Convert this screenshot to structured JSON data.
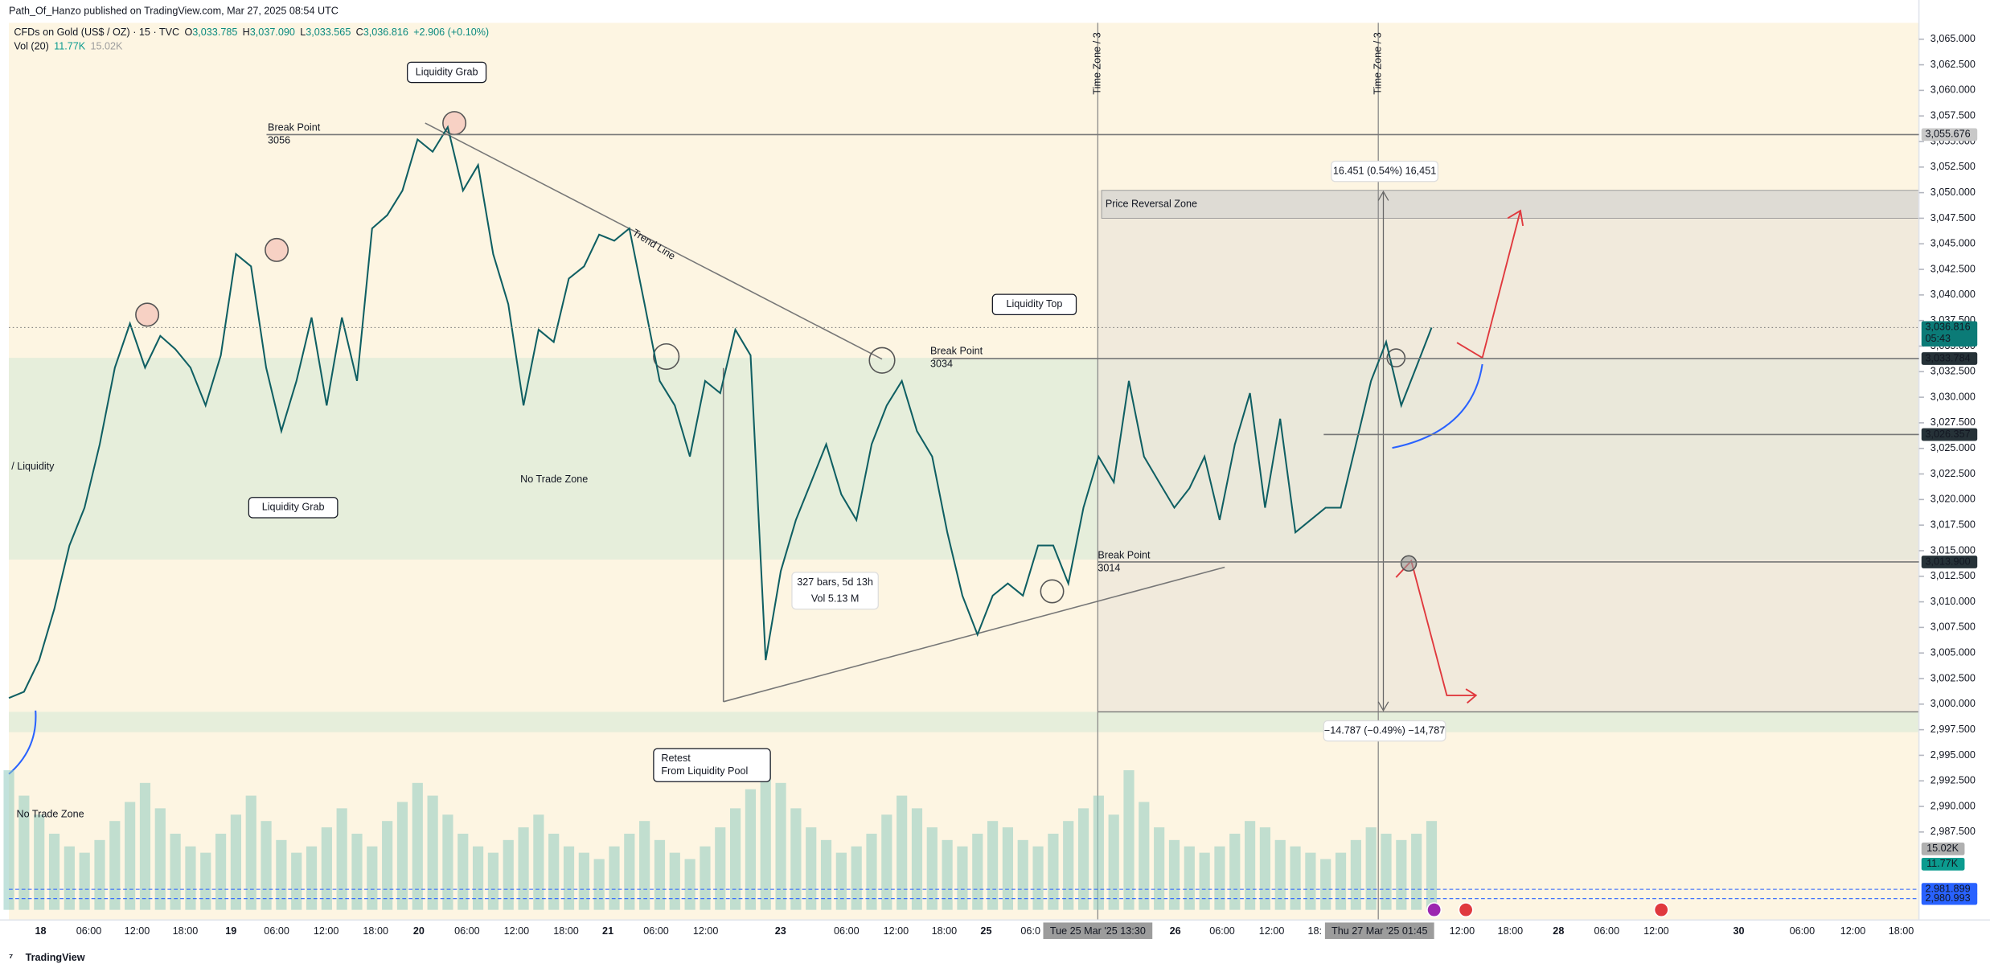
{
  "header": {
    "title": "Path_Of_Hanzo published on TradingView.com, Mar 27, 2025 08:54 UTC",
    "symbol": "CFDs on Gold (US$ / OZ) · 15 · TVC",
    "ohlc": [
      {
        "k": "O",
        "v": "3,033.785"
      },
      {
        "k": "H",
        "v": "3,037.090"
      },
      {
        "k": "L",
        "v": "3,033.565"
      },
      {
        "k": "C",
        "v": "3,036.816"
      }
    ],
    "change": "+2.906 (+0.10%)",
    "volume_name": "Vol (20)",
    "volume_values": [
      "11.77K",
      "15.02K"
    ]
  },
  "footer": "TradingView",
  "chart_data": {
    "type": "line",
    "color": "#0f5f63",
    "ylim": [
      2978.9,
      3066.6
    ],
    "yticks": [
      {
        "value": 3065,
        "label": "3,065.000"
      },
      {
        "value": 3062.5,
        "label": "3,062.500"
      },
      {
        "value": 3060,
        "label": "3,060.000"
      },
      {
        "value": 3057.5,
        "label": "3,057.500"
      },
      {
        "value": 3055,
        "label": "3,055.000"
      },
      {
        "value": 3052.5,
        "label": "3,052.500"
      },
      {
        "value": 3050,
        "label": "3,050.000"
      },
      {
        "value": 3047.5,
        "label": "3,047.500"
      },
      {
        "value": 3045,
        "label": "3,045.000"
      },
      {
        "value": 3042.5,
        "label": "3,042.500"
      },
      {
        "value": 3040,
        "label": "3,040.000"
      },
      {
        "value": 3037.5,
        "label": "3,037.500"
      },
      {
        "value": 3035,
        "label": "3,035.000"
      },
      {
        "value": 3032.5,
        "label": "3,032.500"
      },
      {
        "value": 3030,
        "label": "3,030.000"
      },
      {
        "value": 3027.5,
        "label": "3,027.500"
      },
      {
        "value": 3025,
        "label": "3,025.000"
      },
      {
        "value": 3022.5,
        "label": "3,022.500"
      },
      {
        "value": 3020,
        "label": "3,020.000"
      },
      {
        "value": 3017.5,
        "label": "3,017.500"
      },
      {
        "value": 3015,
        "label": "3,015.000"
      },
      {
        "value": 3012.5,
        "label": "3,012.500"
      },
      {
        "value": 3010,
        "label": "3,010.000"
      },
      {
        "value": 3007.5,
        "label": "3,007.500"
      },
      {
        "value": 3005,
        "label": "3,005.000"
      },
      {
        "value": 3002.5,
        "label": "3,002.500"
      },
      {
        "value": 3000,
        "label": "3,000.000"
      },
      {
        "value": 2997.5,
        "label": "2,997.500"
      },
      {
        "value": 2995,
        "label": "2,995.000"
      },
      {
        "value": 2992.5,
        "label": "2,992.500"
      },
      {
        "value": 2990,
        "label": "2,990.000"
      },
      {
        "value": 2987.5,
        "label": "2,987.500"
      }
    ],
    "values": [
      3000.6,
      3001.2,
      3004.3,
      3009.3,
      3015.5,
      3019.2,
      3025.4,
      3032.9,
      3037.2,
      3032.9,
      3036.0,
      3034.7,
      3032.9,
      3029.2,
      3034.1,
      3044.0,
      3042.8,
      3032.9,
      3026.7,
      3031.6,
      3037.8,
      3029.2,
      3037.8,
      3031.6,
      3046.5,
      3047.8,
      3050.2,
      3055.2,
      3054.0,
      3056.4,
      3050.2,
      3052.7,
      3044.0,
      3039.1,
      3029.2,
      3036.6,
      3035.4,
      3041.6,
      3042.8,
      3045.9,
      3045.3,
      3046.5,
      3039.1,
      3031.6,
      3029.2,
      3024.2,
      3031.6,
      3030.4,
      3036.6,
      3034.1,
      3004.3,
      3013.0,
      3018.0,
      3021.7,
      3025.4,
      3020.5,
      3018.0,
      3025.4,
      3029.2,
      3031.6,
      3026.7,
      3024.2,
      3016.8,
      3010.6,
      3006.8,
      3010.6,
      3011.8,
      3010.6,
      3015.5,
      3015.5,
      3011.8,
      3019.2,
      3024.2,
      3021.7,
      3031.6,
      3024.2,
      3021.7,
      3019.2,
      3021.1,
      3024.2,
      3018.0,
      3025.4,
      3030.4,
      3019.2,
      3027.9,
      3016.8,
      3018.0,
      3019.2,
      3019.2,
      3025.4,
      3031.6,
      3035.4,
      3029.2,
      3033.0,
      3036.8
    ],
    "volume": [
      22,
      18,
      15,
      12,
      10,
      9,
      11,
      14,
      17,
      20,
      16,
      12,
      10,
      9,
      12,
      15,
      18,
      14,
      11,
      9,
      10,
      13,
      16,
      12,
      10,
      14,
      17,
      20,
      18,
      15,
      12,
      10,
      9,
      11,
      13,
      15,
      12,
      10,
      9,
      8,
      10,
      12,
      14,
      11,
      9,
      8,
      10,
      13,
      16,
      19,
      24,
      20,
      16,
      13,
      11,
      9,
      10,
      12,
      15,
      18,
      16,
      13,
      11,
      10,
      12,
      14,
      13,
      11,
      10,
      12,
      14,
      16,
      18,
      15,
      22,
      17,
      13,
      11,
      10,
      9,
      10,
      12,
      14,
      13,
      11,
      10,
      9,
      8,
      9,
      11,
      13,
      12,
      11,
      12,
      14
    ],
    "volume_color": "#8fcbc0",
    "time_labels": [
      "18",
      "06:00",
      "12:00",
      "18:00",
      "19",
      "06:00",
      "12:00",
      "18:00",
      "20",
      "06:00",
      "12:00",
      "18:00",
      "21",
      "06:00",
      "12:00",
      "23",
      "06:00",
      "12:00",
      "18:00",
      "25",
      "06:0",
      "Tue 25 Mar '25   13:30",
      "26",
      "06:00",
      "12:00",
      "18:",
      "Thu 27 Mar '25   01:45",
      "12:00",
      "18:00",
      "28",
      "06:00",
      "12:00",
      "30",
      "06:00",
      "12:00",
      "18:00"
    ],
    "price_labels": [
      {
        "value": 3055.676,
        "label": "3,055.676",
        "color": "#c8c8c8"
      },
      {
        "value": 3036.816,
        "label": "3,036.816",
        "sub": "05:43",
        "color": "#0b7b77"
      },
      {
        "value": 3033.784,
        "label": "3,033.784",
        "color": "#263238"
      },
      {
        "value": 3026.357,
        "label": "3,026.357",
        "color": "#263238"
      },
      {
        "value": 3013.9,
        "label": "3,013.900",
        "color": "#263238"
      },
      {
        "value": 2981.899,
        "label": "2,981.899",
        "color": "#2962ff"
      },
      {
        "value": 2980.993,
        "label": "2,980.993",
        "color": "#2962ff"
      }
    ],
    "volume_labels": [
      {
        "label": "15.02K",
        "color": "#b0b0b0"
      },
      {
        "label": "11.77K",
        "color": "#0b9b8f"
      }
    ]
  },
  "annotations": [
    {
      "lines": [
        "Liquidity Grab"
      ]
    },
    {
      "lines": [
        "Liquidity Grab"
      ]
    },
    {
      "lines": [
        "Liquidity Top"
      ]
    },
    {
      "lines": [
        "Retest",
        "From Liquidity Pool"
      ]
    },
    {
      "lines": [
        "Break Point",
        "3056"
      ]
    },
    {
      "lines": [
        "Break Point",
        "3034"
      ]
    },
    {
      "lines": [
        "Break Point",
        "3014"
      ]
    },
    {
      "lines": [
        "/ Liquidity"
      ]
    },
    {
      "lines": [
        "No Trade Zone"
      ]
    },
    {
      "lines": [
        "No Trade Zone"
      ]
    },
    {
      "lines": [
        "Trend Line"
      ]
    },
    {
      "lines": [
        "Price Reversal Zone"
      ]
    },
    {
      "lines": [
        "16.451 (0.54%) 16,451"
      ]
    },
    {
      "lines": [
        "−14.787 (−0.49%) −14,787"
      ]
    },
    {
      "lines": [
        "327 bars, 5d 13h",
        "Vol 5.13 M"
      ]
    },
    {
      "lines": [
        "Time Zone / 3"
      ]
    },
    {
      "lines": [
        "Time Zone / 3"
      ]
    }
  ]
}
